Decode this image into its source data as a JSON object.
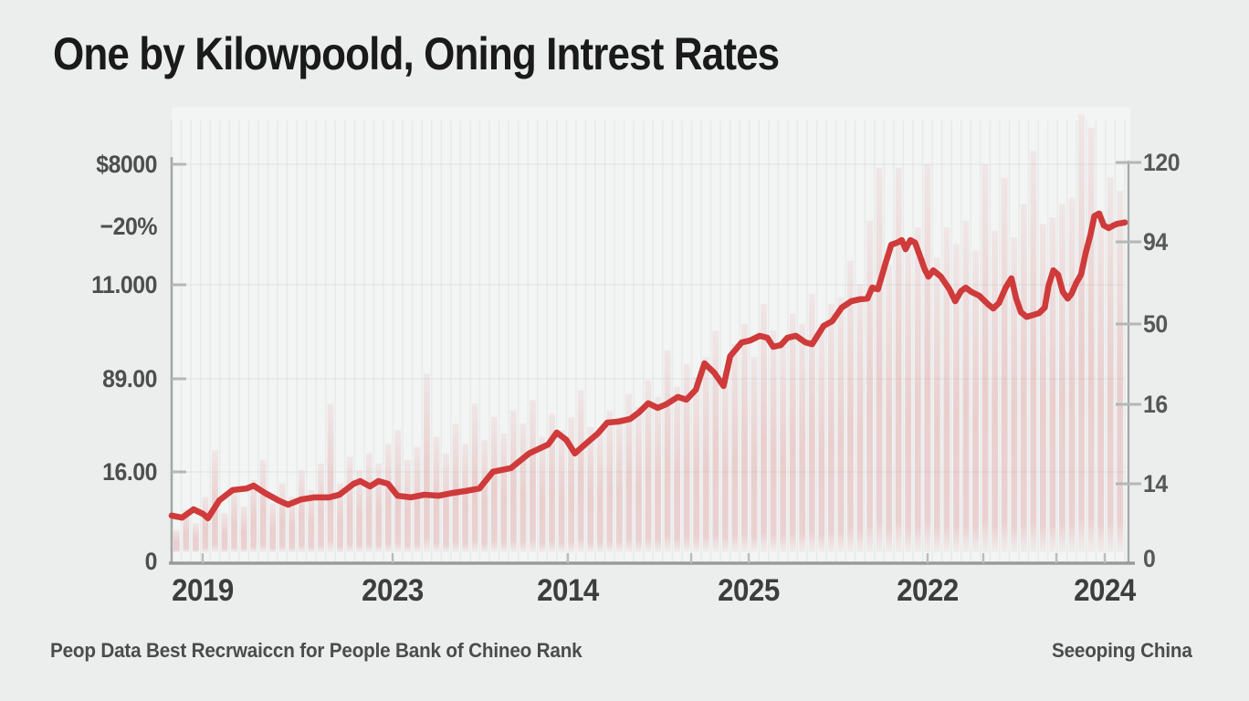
{
  "chart_data": {
    "type": "line",
    "title": "One by Kilowpoold, Oning Intrest Rates",
    "source_left": "Peop Data Best Recrwaiccn for People Bank of Chineo Rank",
    "source_right": "Seeoping China",
    "grid": "on",
    "legend": "none",
    "colors": {
      "line": "#cf3a3a",
      "bars": "#d06060",
      "axis": "#a3a8a6",
      "background": "#eceeed"
    },
    "left_axis": {
      "labels": [
        "$8000",
        "−20%",
        "11.000",
        "89.00",
        "16.00",
        "0"
      ]
    },
    "right_axis": {
      "labels": [
        "120",
        "94",
        "50",
        "16",
        "14",
        "0"
      ],
      "min": 0,
      "max": 120
    },
    "x_axis": {
      "labels": [
        "2019",
        "2023",
        "2014",
        "2025",
        "2022",
        "2024"
      ]
    },
    "line_series": {
      "name": "interest-rate-line",
      "points": [
        [
          0,
          14.3
        ],
        [
          1.1,
          13.7
        ],
        [
          2.3,
          16.2
        ],
        [
          3.3,
          14.8
        ],
        [
          3.8,
          13.5
        ],
        [
          5,
          18.9
        ],
        [
          6.4,
          22
        ],
        [
          7.9,
          22.5
        ],
        [
          8.6,
          23.3
        ],
        [
          9.8,
          21.1
        ],
        [
          11.2,
          18.9
        ],
        [
          12.2,
          17.6
        ],
        [
          13.6,
          19.2
        ],
        [
          15,
          19.8
        ],
        [
          16.5,
          19.8
        ],
        [
          17.6,
          20.6
        ],
        [
          19.1,
          23.9
        ],
        [
          19.8,
          24.7
        ],
        [
          20.8,
          23.1
        ],
        [
          21.7,
          24.7
        ],
        [
          22.7,
          23.9
        ],
        [
          23.7,
          20.3
        ],
        [
          25.1,
          19.8
        ],
        [
          26.5,
          20.6
        ],
        [
          28,
          20.3
        ],
        [
          29.4,
          21.1
        ],
        [
          30.8,
          21.7
        ],
        [
          32.3,
          22.5
        ],
        [
          33.7,
          27.5
        ],
        [
          35.6,
          28.6
        ],
        [
          37.5,
          33
        ],
        [
          39.5,
          35.7
        ],
        [
          40.4,
          39.3
        ],
        [
          41.4,
          37.1
        ],
        [
          42.3,
          33
        ],
        [
          43.6,
          36.3
        ],
        [
          44.7,
          39
        ],
        [
          45.7,
          42.3
        ],
        [
          46.9,
          42.6
        ],
        [
          48.1,
          43.4
        ],
        [
          49,
          45.3
        ],
        [
          50,
          48.1
        ],
        [
          51,
          46.7
        ],
        [
          51.9,
          47.8
        ],
        [
          53.1,
          50
        ],
        [
          54,
          49.2
        ],
        [
          55,
          52.2
        ],
        [
          55.9,
          60.1
        ],
        [
          56.9,
          57.4
        ],
        [
          57.9,
          53.3
        ],
        [
          58.6,
          62.3
        ],
        [
          59.8,
          66.4
        ],
        [
          60.7,
          67
        ],
        [
          61.7,
          68.4
        ],
        [
          62.5,
          67.8
        ],
        [
          63.1,
          65.1
        ],
        [
          63.9,
          65.6
        ],
        [
          64.6,
          67.8
        ],
        [
          65.5,
          68.4
        ],
        [
          66.5,
          66.4
        ],
        [
          67.2,
          65.9
        ],
        [
          68.4,
          71.4
        ],
        [
          69.3,
          72.8
        ],
        [
          70.3,
          76.9
        ],
        [
          71.3,
          78.8
        ],
        [
          72.2,
          79.4
        ],
        [
          73,
          79.6
        ],
        [
          73.5,
          82.9
        ],
        [
          74.1,
          82.4
        ],
        [
          74.9,
          90.3
        ],
        [
          75.5,
          95.8
        ],
        [
          76.1,
          96.4
        ],
        [
          76.6,
          97.2
        ],
        [
          77,
          94.5
        ],
        [
          77.5,
          97.2
        ],
        [
          78,
          96.4
        ],
        [
          78.5,
          92.5
        ],
        [
          79,
          88.4
        ],
        [
          79.4,
          86.2
        ],
        [
          79.9,
          88.1
        ],
        [
          80.7,
          86.2
        ],
        [
          81.6,
          82.4
        ],
        [
          82.2,
          78.8
        ],
        [
          82.8,
          81.8
        ],
        [
          83.3,
          82.9
        ],
        [
          83.9,
          81.6
        ],
        [
          84.7,
          80.5
        ],
        [
          85.6,
          78
        ],
        [
          86.2,
          76.6
        ],
        [
          86.8,
          78.3
        ],
        [
          87.5,
          82.9
        ],
        [
          88.1,
          85.7
        ],
        [
          88.6,
          79.6
        ],
        [
          89.1,
          75.5
        ],
        [
          89.7,
          74.1
        ],
        [
          90.4,
          74.7
        ],
        [
          91,
          75.2
        ],
        [
          91.6,
          76.9
        ],
        [
          92,
          83.5
        ],
        [
          92.5,
          88.1
        ],
        [
          93,
          86.8
        ],
        [
          93.5,
          81.6
        ],
        [
          94,
          79.6
        ],
        [
          94.4,
          81
        ],
        [
          94.9,
          84.3
        ],
        [
          95.4,
          86.8
        ],
        [
          95.9,
          93.4
        ],
        [
          96.4,
          98.8
        ],
        [
          96.8,
          104.4
        ],
        [
          97.3,
          105.2
        ],
        [
          97.8,
          101.6
        ],
        [
          98.3,
          100.8
        ],
        [
          98.8,
          101.6
        ],
        [
          99.2,
          102.1
        ],
        [
          100,
          102.5
        ]
      ]
    },
    "bar_series": {
      "name": "background-volume-bars",
      "values": [
        10,
        16,
        12,
        20,
        34,
        15,
        22,
        17,
        25,
        31,
        18,
        24,
        20,
        28,
        22,
        30,
        48,
        24,
        32,
        28,
        33,
        30,
        36,
        40,
        31,
        35,
        57,
        38,
        33,
        42,
        36,
        48,
        37,
        44,
        39,
        46,
        42,
        49,
        38,
        45,
        40,
        44,
        52,
        41,
        40,
        46,
        44,
        51,
        47,
        55,
        50,
        64,
        53,
        60,
        56,
        62,
        70,
        58,
        66,
        72,
        62,
        78,
        70,
        66,
        75,
        72,
        81,
        70,
        78,
        80,
        91,
        84,
        103,
        119,
        90,
        119,
        95,
        101,
        120,
        92,
        101,
        96,
        103,
        94,
        120,
        100,
        116,
        98,
        108,
        124,
        102,
        104,
        108,
        110,
        135,
        131,
        106,
        116,
        112
      ]
    }
  }
}
